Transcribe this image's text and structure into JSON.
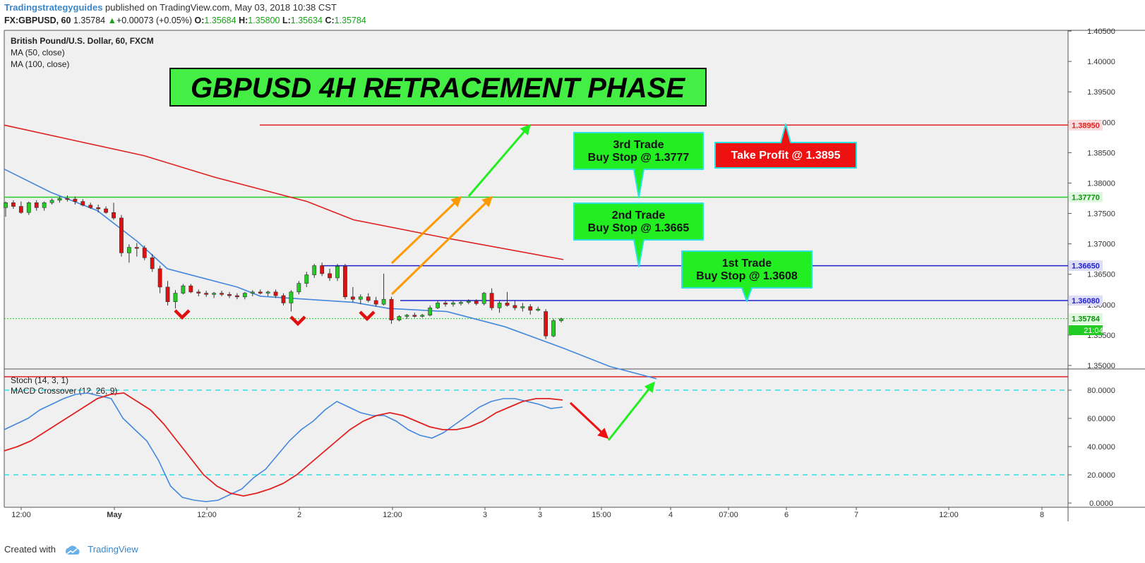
{
  "header": {
    "publisher": "Tradingstrategyguides",
    "published_text": "published on TradingView.com, May 03, 2018 10:38 CST",
    "symbol": "FX:GBPUSD, 60",
    "last": "1.35784",
    "change": "+0.00073 (+0.05%)",
    "open_label": "O:",
    "open": "1.35684",
    "high_label": "H:",
    "high": "1.35800",
    "low_label": "L:",
    "low": "1.35634",
    "close_label": "C:",
    "close": "1.35784",
    "colors": {
      "up": "#1aa31a",
      "publisher": "#3a87c9"
    }
  },
  "footer": {
    "created_with": "Created with",
    "brand": "TradingView"
  },
  "chart_data": [
    {
      "type": "candlestick",
      "title": "GBPUSD 4H RETRACEMENT PHASE",
      "legend": [
        "British Pound/U.S. Dollar, 60, FXCM",
        "MA (50, close)",
        "MA (100, close)"
      ],
      "y_ticks": [
        "1.40500",
        "1.40000",
        "1.39500",
        "1.39000",
        "1.38500",
        "1.38000",
        "1.37500",
        "1.37000",
        "1.36500",
        "1.36000",
        "1.35500",
        "1.35000"
      ],
      "ylim": [
        1.3496,
        1.405
      ],
      "x_ticks": [
        "12:00",
        "May",
        "12:00",
        "2",
        "12:00",
        "3",
        "3",
        "15:00",
        "4",
        "07:00",
        "6",
        "7",
        "12:00",
        "8"
      ],
      "candles": [
        [
          1.376,
          1.377,
          1.3745,
          1.3768
        ],
        [
          1.3768,
          1.3772,
          1.3758,
          1.3762
        ],
        [
          1.3762,
          1.377,
          1.375,
          1.3752
        ],
        [
          1.3752,
          1.377,
          1.3748,
          1.3768
        ],
        [
          1.3768,
          1.3772,
          1.3755,
          1.376
        ],
        [
          1.376,
          1.377,
          1.3755,
          1.3768
        ],
        [
          1.3768,
          1.3775,
          1.3765,
          1.3772
        ],
        [
          1.3772,
          1.3778,
          1.3768,
          1.3775
        ],
        [
          1.3775,
          1.378,
          1.377,
          1.3774
        ],
        [
          1.3774,
          1.3778,
          1.3765,
          1.377
        ],
        [
          1.377,
          1.3774,
          1.3762,
          1.3764
        ],
        [
          1.3764,
          1.3768,
          1.3758,
          1.376
        ],
        [
          1.376,
          1.3765,
          1.3752,
          1.3758
        ],
        [
          1.3758,
          1.3762,
          1.375,
          1.3752
        ],
        [
          1.3752,
          1.3768,
          1.374,
          1.3743
        ],
        [
          1.3743,
          1.3748,
          1.368,
          1.3686
        ],
        [
          1.3686,
          1.37,
          1.367,
          1.3695
        ],
        [
          1.3695,
          1.3702,
          1.368,
          1.3694
        ],
        [
          1.3694,
          1.3698,
          1.3674,
          1.3678
        ],
        [
          1.3678,
          1.3684,
          1.3655,
          1.366
        ],
        [
          1.366,
          1.3665,
          1.362,
          1.363
        ],
        [
          1.363,
          1.364,
          1.36,
          1.3606
        ],
        [
          1.3606,
          1.3625,
          1.3595,
          1.362
        ],
        [
          1.362,
          1.3635,
          1.3618,
          1.3632
        ],
        [
          1.3632,
          1.3635,
          1.362,
          1.3622
        ],
        [
          1.3622,
          1.3626,
          1.3615,
          1.362
        ],
        [
          1.362,
          1.3624,
          1.3614,
          1.3618
        ],
        [
          1.3618,
          1.3622,
          1.3612,
          1.362
        ],
        [
          1.362,
          1.3624,
          1.3615,
          1.3618
        ],
        [
          1.3618,
          1.3622,
          1.3612,
          1.3616
        ],
        [
          1.3616,
          1.362,
          1.361,
          1.3614
        ],
        [
          1.3614,
          1.3622,
          1.361,
          1.362
        ],
        [
          1.362,
          1.3625,
          1.3615,
          1.3622
        ],
        [
          1.3622,
          1.3626,
          1.3618,
          1.362
        ],
        [
          1.362,
          1.3624,
          1.3615,
          1.3622
        ],
        [
          1.3622,
          1.3626,
          1.3612,
          1.3616
        ],
        [
          1.3616,
          1.362,
          1.36,
          1.3604
        ],
        [
          1.3604,
          1.3625,
          1.359,
          1.3622
        ],
        [
          1.3622,
          1.364,
          1.3618,
          1.3636
        ],
        [
          1.3636,
          1.3655,
          1.363,
          1.365
        ],
        [
          1.365,
          1.3668,
          1.3645,
          1.3665
        ],
        [
          1.3665,
          1.367,
          1.3648,
          1.3652
        ],
        [
          1.3652,
          1.366,
          1.364,
          1.3645
        ],
        [
          1.3645,
          1.3668,
          1.364,
          1.3664
        ],
        [
          1.3664,
          1.3668,
          1.361,
          1.3614
        ],
        [
          1.3614,
          1.363,
          1.3605,
          1.361
        ],
        [
          1.361,
          1.3618,
          1.3602,
          1.3614
        ],
        [
          1.3614,
          1.362,
          1.3605,
          1.3608
        ],
        [
          1.3608,
          1.3614,
          1.3598,
          1.3602
        ],
        [
          1.3602,
          1.3652,
          1.36,
          1.361
        ],
        [
          1.361,
          1.3614,
          1.357,
          1.3576
        ],
        [
          1.3576,
          1.3584,
          1.3574,
          1.3582
        ],
        [
          1.3582,
          1.3586,
          1.3578,
          1.3584
        ],
        [
          1.3584,
          1.3588,
          1.358,
          1.3582
        ],
        [
          1.3582,
          1.3586,
          1.358,
          1.3584
        ],
        [
          1.3584,
          1.36,
          1.3582,
          1.3596
        ],
        [
          1.3596,
          1.3608,
          1.3594,
          1.3604
        ],
        [
          1.3604,
          1.3608,
          1.3598,
          1.3602
        ],
        [
          1.3602,
          1.3608,
          1.3598,
          1.3604
        ],
        [
          1.3604,
          1.3608,
          1.36,
          1.3605
        ],
        [
          1.3605,
          1.361,
          1.3602,
          1.3607
        ],
        [
          1.3607,
          1.361,
          1.36,
          1.3603
        ],
        [
          1.3603,
          1.3622,
          1.36,
          1.362
        ],
        [
          1.362,
          1.3628,
          1.3592,
          1.3596
        ],
        [
          1.3596,
          1.3608,
          1.3588,
          1.3604
        ],
        [
          1.3604,
          1.3622,
          1.3598,
          1.36
        ],
        [
          1.36,
          1.3608,
          1.3592,
          1.3596
        ],
        [
          1.3596,
          1.3604,
          1.359,
          1.3598
        ],
        [
          1.3598,
          1.3602,
          1.3585,
          1.3592
        ],
        [
          1.3592,
          1.3598,
          1.359,
          1.3594
        ],
        [
          1.359,
          1.3594,
          1.3545,
          1.355
        ],
        [
          1.355,
          1.3578,
          1.3548,
          1.3575
        ],
        [
          1.3575,
          1.358,
          1.3572,
          1.3578
        ]
      ],
      "ma_50": [
        [
          0,
          1.3823
        ],
        [
          20,
          1.3785
        ],
        [
          40,
          1.3755
        ],
        [
          57,
          1.3705
        ],
        [
          70,
          1.366
        ],
        [
          100,
          1.363
        ],
        [
          110,
          1.3615
        ],
        [
          150,
          1.3605
        ],
        [
          165,
          1.3595
        ],
        [
          190,
          1.359
        ],
        [
          215,
          1.3565
        ],
        [
          240,
          1.353
        ],
        [
          260,
          1.35
        ],
        [
          280,
          1.348
        ]
      ],
      "ma_100": [
        [
          0,
          1.3895
        ],
        [
          30,
          1.387
        ],
        [
          60,
          1.3845
        ],
        [
          90,
          1.381
        ],
        [
          130,
          1.377
        ],
        [
          150,
          1.374
        ],
        [
          190,
          1.371
        ],
        [
          240,
          1.3675
        ]
      ],
      "levels": [
        {
          "value": 1.3895,
          "label": "1.38950",
          "color": "#e02020"
        },
        {
          "value": 1.3777,
          "label": "1.37770",
          "color": "#22cc22"
        },
        {
          "value": 1.3665,
          "label": "1.36650",
          "color": "#1f1fcc"
        },
        {
          "value": 1.3608,
          "label": "1.36080",
          "color": "#1f1fcc"
        },
        {
          "value": 1.35784,
          "label": "1.35784",
          "color": "#22cc22"
        }
      ],
      "countdown": "21:04",
      "annotations": [
        {
          "line1": "3rd Trade",
          "line2": "Buy Stop @ 1.3777",
          "color": "#22ee22"
        },
        {
          "line1": "2nd Trade",
          "line2": "Buy Stop @ 1.3665",
          "color": "#22ee22"
        },
        {
          "line1": "1st Trade",
          "line2": "Buy Stop @ 1.3608",
          "color": "#22ee22"
        },
        {
          "line1": "Take Profit @ 1.3895",
          "color": "#ee1111"
        }
      ]
    },
    {
      "type": "line",
      "legend": [
        "Stoch (14, 3, 1)",
        "MACD Crossover (12, 26, 9)"
      ],
      "y_ticks": [
        "80.0000",
        "60.0000",
        "40.0000",
        "20.0000",
        "0.0000"
      ],
      "ylim": [
        -3,
        95
      ],
      "series": [
        {
          "values": [
            52,
            56,
            60,
            66,
            70,
            74,
            77,
            78,
            76,
            74,
            60,
            52,
            44,
            30,
            12,
            4,
            2,
            1,
            2,
            6,
            10,
            18,
            24,
            34,
            44,
            52,
            58,
            66,
            72,
            68,
            64,
            62,
            62,
            58,
            52,
            48,
            46,
            50,
            56,
            62,
            68,
            72,
            74,
            74,
            72,
            70,
            67,
            68
          ],
          "color": "#4488dd"
        },
        {
          "values": [
            37,
            40,
            44,
            50,
            56,
            62,
            68,
            74,
            77,
            78,
            72,
            66,
            56,
            44,
            32,
            20,
            12,
            7,
            5,
            7,
            10,
            14,
            20,
            28,
            36,
            44,
            52,
            58,
            62,
            64,
            62,
            58,
            54,
            52,
            52,
            54,
            58,
            64,
            68,
            72,
            74,
            74,
            73
          ],
          "color": "#e02020"
        }
      ]
    }
  ]
}
